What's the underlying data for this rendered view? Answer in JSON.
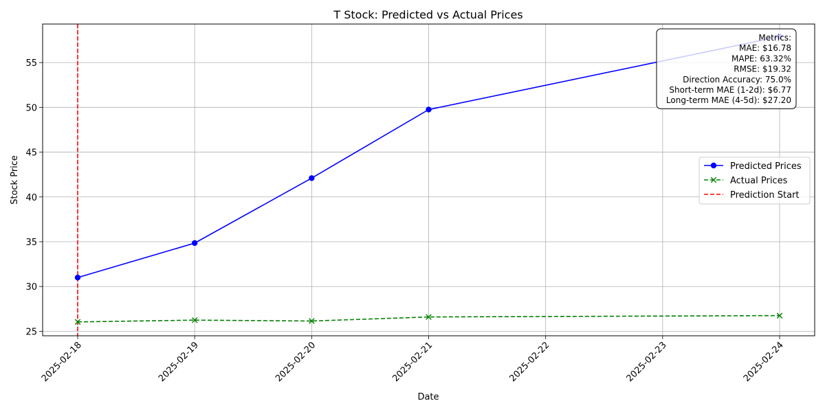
{
  "chart_data": {
    "type": "line",
    "title": "T Stock: Predicted vs Actual Prices",
    "xlabel": "Date",
    "ylabel": "Stock Price",
    "x_ticks": [
      "2025-02-18",
      "2025-02-19",
      "2025-02-20",
      "2025-02-21",
      "2025-02-22",
      "2025-02-23",
      "2025-02-24"
    ],
    "y_ticks": [
      25,
      30,
      35,
      40,
      45,
      50,
      55
    ],
    "xlim": [
      "2025-02-18",
      "2025-02-24"
    ],
    "ylim": [
      24.5,
      59.3
    ],
    "grid": true,
    "legend_position": "center-right",
    "series": [
      {
        "name": "Predicted Prices",
        "color": "#0000ff",
        "style": "solid",
        "marker": "circle",
        "points": [
          {
            "x": "2025-02-18",
            "y": 31.0
          },
          {
            "x": "2025-02-19",
            "y": 34.85
          },
          {
            "x": "2025-02-20",
            "y": 42.1
          },
          {
            "x": "2025-02-21",
            "y": 49.75
          },
          {
            "x": "2025-02-24",
            "y": 57.9
          }
        ]
      },
      {
        "name": "Actual Prices",
        "color": "#008000",
        "style": "dashed",
        "marker": "x",
        "points": [
          {
            "x": "2025-02-18",
            "y": 26.05
          },
          {
            "x": "2025-02-19",
            "y": 26.25
          },
          {
            "x": "2025-02-20",
            "y": 26.15
          },
          {
            "x": "2025-02-21",
            "y": 26.6
          },
          {
            "x": "2025-02-24",
            "y": 26.75
          }
        ]
      }
    ],
    "vertical_lines": [
      {
        "name": "Prediction Start",
        "x": "2025-02-18",
        "color": "#ff0000",
        "style": "dashed"
      }
    ],
    "annotation": {
      "position": "top-right",
      "lines": [
        "Metrics:",
        "MAE: $16.78",
        "MAPE: 63.32%",
        "RMSE: $19.32",
        "Direction Accuracy: 75.0%",
        "Short-term MAE (1-2d): $6.77",
        "Long-term MAE (4-5d): $27.20"
      ]
    }
  }
}
